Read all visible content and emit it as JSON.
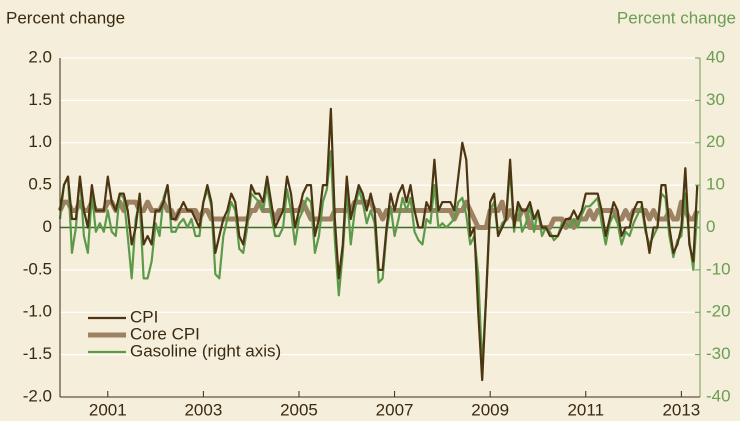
{
  "chart_data": {
    "type": "line",
    "y_label": "Percent change",
    "y2_label": "Percent change",
    "x": [
      2000,
      2000.083,
      2000.167,
      2000.25,
      2000.333,
      2000.417,
      2000.5,
      2000.583,
      2000.667,
      2000.75,
      2000.833,
      2000.917,
      2001,
      2001.083,
      2001.167,
      2001.25,
      2001.333,
      2001.417,
      2001.5,
      2001.583,
      2001.667,
      2001.75,
      2001.833,
      2001.917,
      2002,
      2002.083,
      2002.167,
      2002.25,
      2002.333,
      2002.417,
      2002.5,
      2002.583,
      2002.667,
      2002.75,
      2002.833,
      2002.917,
      2003,
      2003.083,
      2003.167,
      2003.25,
      2003.333,
      2003.417,
      2003.5,
      2003.583,
      2003.667,
      2003.75,
      2003.833,
      2003.917,
      2004,
      2004.083,
      2004.167,
      2004.25,
      2004.333,
      2004.417,
      2004.5,
      2004.583,
      2004.667,
      2004.75,
      2004.833,
      2004.917,
      2005,
      2005.083,
      2005.167,
      2005.25,
      2005.333,
      2005.417,
      2005.5,
      2005.583,
      2005.667,
      2005.75,
      2005.833,
      2005.917,
      2006,
      2006.083,
      2006.167,
      2006.25,
      2006.333,
      2006.417,
      2006.5,
      2006.583,
      2006.667,
      2006.75,
      2006.833,
      2006.917,
      2007,
      2007.083,
      2007.167,
      2007.25,
      2007.333,
      2007.417,
      2007.5,
      2007.583,
      2007.667,
      2007.75,
      2007.833,
      2007.917,
      2008,
      2008.083,
      2008.167,
      2008.25,
      2008.333,
      2008.417,
      2008.5,
      2008.583,
      2008.667,
      2008.75,
      2008.833,
      2008.917,
      2009,
      2009.083,
      2009.167,
      2009.25,
      2009.333,
      2009.417,
      2009.5,
      2009.583,
      2009.667,
      2009.75,
      2009.833,
      2009.917,
      2010,
      2010.083,
      2010.167,
      2010.25,
      2010.333,
      2010.417,
      2010.5,
      2010.583,
      2010.667,
      2010.75,
      2010.833,
      2010.917,
      2011,
      2011.083,
      2011.167,
      2011.25,
      2011.333,
      2011.417,
      2011.5,
      2011.583,
      2011.667,
      2011.75,
      2011.833,
      2011.917,
      2012,
      2012.083,
      2012.167,
      2012.25,
      2012.333,
      2012.417,
      2012.5,
      2012.583,
      2012.667,
      2012.75,
      2012.833,
      2012.917,
      2013,
      2013.083,
      2013.167,
      2013.25,
      2013.333
    ],
    "series": [
      {
        "name": "Core CPI",
        "color": "#9c8262",
        "width": 5,
        "values": [
          0.2,
          0.3,
          0.3,
          0.2,
          0.2,
          0.3,
          0.2,
          0.2,
          0.3,
          0.2,
          0.2,
          0.2,
          0.3,
          0.3,
          0.2,
          0.3,
          0.2,
          0.3,
          0.3,
          0.3,
          0.2,
          0.2,
          0.3,
          0.2,
          0.2,
          0.2,
          0.3,
          0.2,
          0.2,
          0.1,
          0.2,
          0.2,
          0.2,
          0.2,
          0.2,
          0.1,
          0.2,
          0.2,
          0.1,
          0.1,
          0.1,
          0.1,
          0.1,
          0.1,
          0.1,
          0.1,
          0.1,
          0.1,
          0.2,
          0.2,
          0.3,
          0.2,
          0.2,
          0.2,
          0.1,
          0.2,
          0.2,
          0.2,
          0.2,
          0.2,
          0.2,
          0.3,
          0.2,
          0.1,
          0.1,
          0.1,
          0.1,
          0.1,
          0.1,
          0.2,
          0.2,
          0.2,
          0.2,
          0.2,
          0.3,
          0.3,
          0.3,
          0.3,
          0.3,
          0.2,
          0.2,
          0.1,
          0.2,
          0.2,
          0.2,
          0.2,
          0.2,
          0.2,
          0.2,
          0.2,
          0.2,
          0.2,
          0.2,
          0.2,
          0.2,
          0.2,
          0.2,
          0.2,
          0.2,
          0.1,
          0.2,
          0.2,
          0.3,
          0.2,
          0.1,
          0.0,
          0.0,
          0.0,
          0.2,
          0.2,
          0.2,
          0.3,
          0.1,
          0.2,
          0.1,
          0.1,
          0.2,
          0.2,
          0.0,
          0.0,
          0.0,
          0.0,
          0.0,
          0.0,
          0.1,
          0.1,
          0.1,
          0.0,
          0.1,
          0.0,
          0.1,
          0.1,
          0.1,
          0.2,
          0.1,
          0.2,
          0.2,
          0.2,
          0.2,
          0.2,
          0.1,
          0.1,
          0.2,
          0.1,
          0.2,
          0.2,
          0.2,
          0.2,
          0.1,
          0.2,
          0.1,
          0.1,
          0.1,
          0.2,
          0.1,
          0.1,
          0.3,
          0.2,
          0.1,
          0.1,
          0.2
        ]
      },
      {
        "name": "Gasoline (right axis)",
        "color": "#5c9a4a",
        "width": 2.2,
        "axis": "y2",
        "values": [
          2,
          10,
          12,
          -6,
          0,
          12,
          -2,
          -6,
          8,
          -1,
          1,
          -1,
          4,
          -1,
          -2,
          8,
          7,
          -2,
          -12,
          2,
          6,
          -12,
          -12,
          -8,
          1,
          -2,
          7,
          10,
          -1,
          -1,
          1,
          2,
          0,
          2,
          -2,
          -2,
          6,
          9,
          5,
          -11,
          -12,
          -2,
          2,
          6,
          4,
          -5,
          -6,
          0,
          8,
          7,
          6,
          4,
          10,
          3,
          -2,
          -2,
          0,
          9,
          4,
          -4,
          2,
          4,
          7,
          6,
          -6,
          -2,
          6,
          9,
          18,
          -3,
          -16,
          -6,
          9,
          -4,
          4,
          9,
          6,
          1,
          4,
          1,
          -13,
          -12,
          -1,
          5,
          -2,
          2,
          7,
          4,
          7,
          -1,
          -3,
          -4,
          2,
          1,
          10,
          0,
          1,
          0,
          1,
          2,
          6,
          7,
          3,
          -4,
          -2,
          -11,
          -33,
          -16,
          4,
          6,
          -2,
          1,
          2,
          14,
          -1,
          6,
          -1,
          1,
          5,
          -1,
          4,
          -2,
          0,
          -1,
          -3,
          -2,
          1,
          1,
          0,
          2,
          0,
          3,
          5,
          5,
          6,
          7,
          1,
          -4,
          1,
          3,
          1,
          -4,
          -1,
          -2,
          1,
          3,
          5,
          -1,
          -4,
          -2,
          0,
          8,
          7,
          -2,
          -7,
          -3,
          -2,
          8,
          -3,
          -10,
          4
        ]
      },
      {
        "name": "CPI",
        "color": "#4b3512",
        "width": 2.2,
        "values": [
          0.2,
          0.5,
          0.6,
          0.1,
          0.1,
          0.6,
          0.2,
          0.0,
          0.5,
          0.2,
          0.2,
          0.2,
          0.6,
          0.3,
          0.2,
          0.4,
          0.4,
          0.2,
          -0.2,
          0.0,
          0.4,
          -0.2,
          -0.1,
          -0.2,
          0.2,
          0.2,
          0.3,
          0.5,
          0.1,
          0.1,
          0.2,
          0.3,
          0.2,
          0.2,
          0.1,
          0.0,
          0.3,
          0.5,
          0.3,
          -0.3,
          -0.1,
          0.1,
          0.2,
          0.4,
          0.3,
          -0.1,
          -0.2,
          0.1,
          0.5,
          0.4,
          0.4,
          0.3,
          0.6,
          0.3,
          0.0,
          0.1,
          0.2,
          0.6,
          0.4,
          0.0,
          0.2,
          0.4,
          0.5,
          0.5,
          -0.1,
          0.1,
          0.5,
          0.5,
          1.4,
          0.1,
          -0.6,
          -0.2,
          0.6,
          0.1,
          0.3,
          0.5,
          0.4,
          0.2,
          0.4,
          0.2,
          -0.5,
          -0.5,
          0.0,
          0.4,
          0.2,
          0.4,
          0.5,
          0.3,
          0.5,
          0.2,
          0.0,
          0.0,
          0.3,
          0.2,
          0.8,
          0.2,
          0.3,
          0.3,
          0.3,
          0.2,
          0.6,
          1.0,
          0.8,
          -0.1,
          0.0,
          -1.0,
          -1.8,
          -0.8,
          0.3,
          0.4,
          -0.1,
          0.0,
          0.1,
          0.8,
          0.0,
          0.3,
          0.2,
          0.2,
          0.3,
          0.1,
          0.2,
          0.0,
          0.0,
          -0.1,
          -0.1,
          -0.1,
          0.0,
          0.1,
          0.1,
          0.2,
          0.1,
          0.2,
          0.4,
          0.4,
          0.4,
          0.4,
          0.2,
          -0.1,
          0.1,
          0.3,
          0.2,
          -0.1,
          0.0,
          0.0,
          0.2,
          0.3,
          0.3,
          0.0,
          -0.3,
          0.0,
          0.0,
          0.5,
          0.5,
          0.0,
          -0.3,
          -0.2,
          0.0,
          0.7,
          -0.2,
          -0.4,
          0.5
        ]
      }
    ],
    "legend_order": [
      "CPI",
      "Core CPI",
      "Gasoline (right axis)"
    ],
    "xlim": [
      2000,
      2013.39
    ],
    "xticks": [
      2001,
      2003,
      2005,
      2007,
      2009,
      2011,
      2013
    ],
    "ylim": [
      -2,
      2
    ],
    "yticks": [
      {
        "value": -2,
        "label": "-2.0"
      },
      -1.5,
      {
        "value": -1,
        "label": "-1.0"
      },
      -0.5,
      0,
      0.5,
      {
        "value": 1,
        "label": "1.0"
      },
      1.5,
      {
        "value": 2,
        "label": "2.0"
      }
    ],
    "y2lim": [
      -40,
      40
    ],
    "y2ticks": [
      -40,
      -30,
      -20,
      -10,
      0,
      10,
      20,
      30,
      40
    ],
    "grid": true,
    "legend": "lower left"
  }
}
